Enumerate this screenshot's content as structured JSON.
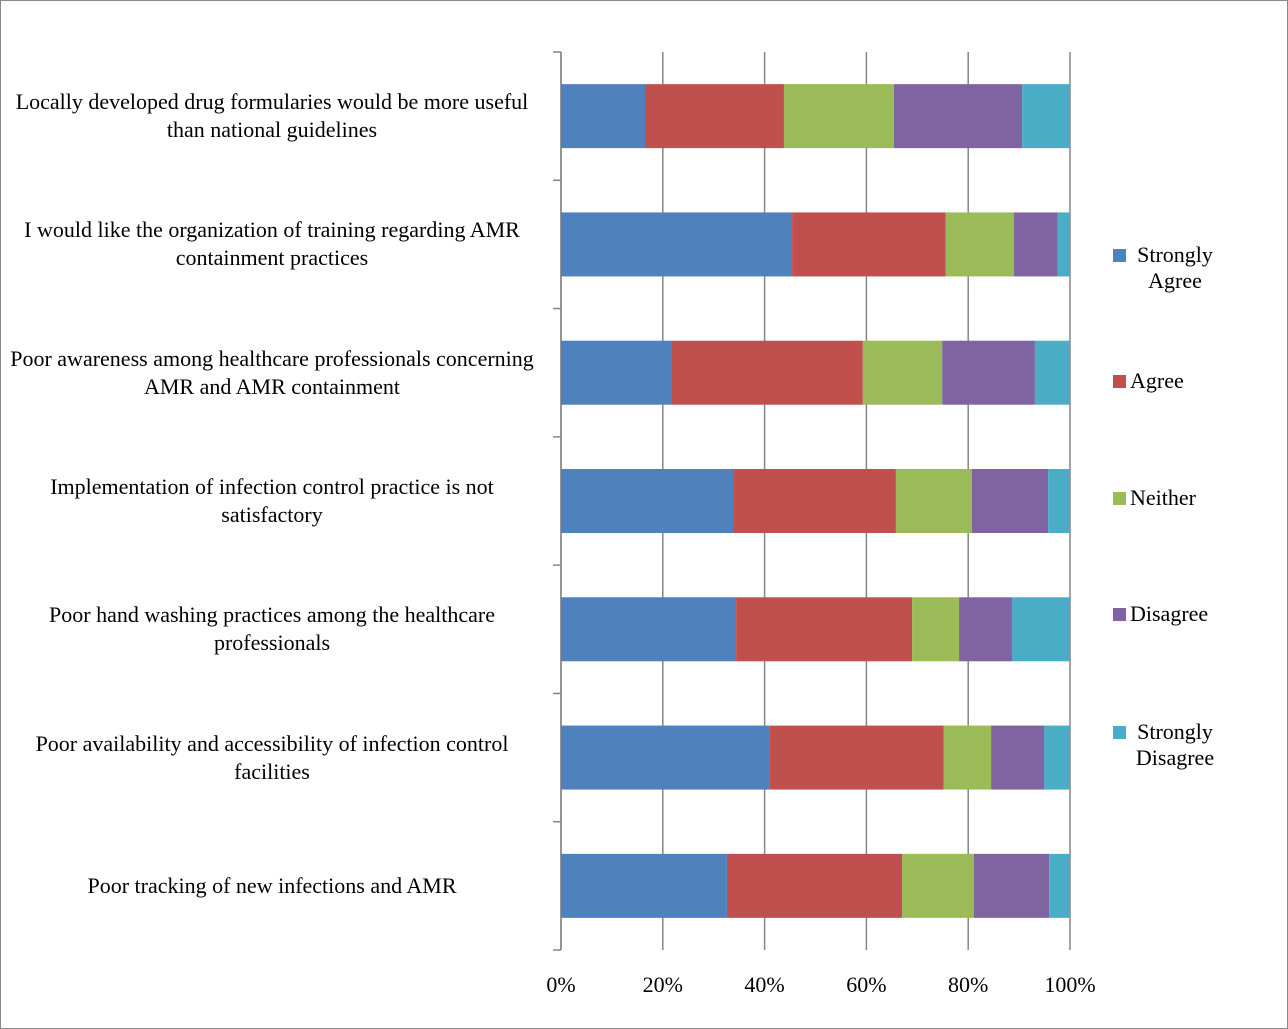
{
  "chart_data": {
    "type": "stacked-bar-horizontal",
    "categories": [
      "Locally developed drug formularies would be more useful than national guidelines",
      "I would like the organization of training regarding AMR containment practices",
      "Poor awareness among healthcare professionals concerning AMR and AMR containment",
      "Implementation of infection control practice is not satisfactory",
      "Poor hand washing practices among the healthcare professionals",
      "Poor availability and accessibility of infection control facilities",
      "Poor tracking of new infections and AMR"
    ],
    "series": [
      {
        "name": "Strongly Agree",
        "color": "#4f81bd",
        "values": [
          16.5,
          45.4,
          21.8,
          33.8,
          34.4,
          40.9,
          32.6
        ]
      },
      {
        "name": "Agree",
        "color": "#c0504d",
        "values": [
          27.3,
          30.2,
          37.5,
          32.0,
          34.6,
          34.3,
          34.4
        ]
      },
      {
        "name": "Neither",
        "color": "#9bbb59",
        "values": [
          21.6,
          13.4,
          15.6,
          14.9,
          9.2,
          9.3,
          14.1
        ]
      },
      {
        "name": "Disagree",
        "color": "#8064a2",
        "values": [
          25.2,
          8.6,
          18.2,
          15.0,
          10.4,
          10.4,
          14.8
        ]
      },
      {
        "name": "Strongly Disagree",
        "color": "#4bacc6",
        "values": [
          9.4,
          2.4,
          6.9,
          4.3,
          11.4,
          5.1,
          4.1
        ]
      }
    ],
    "xlim": [
      0,
      100
    ],
    "xticks": [
      {
        "value": 0,
        "label": "0%"
      },
      {
        "value": 20,
        "label": "20%"
      },
      {
        "value": 40,
        "label": "40%"
      },
      {
        "value": 60,
        "label": "60%"
      },
      {
        "value": 80,
        "label": "80%"
      },
      {
        "value": 100,
        "label": "100%"
      }
    ],
    "grid": true,
    "legend": "right"
  }
}
